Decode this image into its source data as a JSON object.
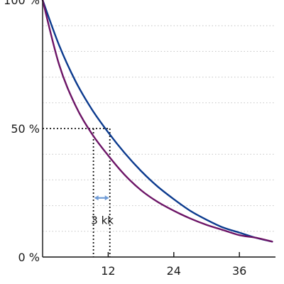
{
  "chart_data": {
    "type": "line",
    "title": "",
    "xlabel": "",
    "ylabel": "",
    "xlim": [
      0,
      42.6
    ],
    "ylim": [
      0,
      100
    ],
    "x_ticks": [
      {
        "value": 12,
        "label": "12"
      },
      {
        "value": 24,
        "label": "24"
      },
      {
        "value": 36,
        "label": "36"
      }
    ],
    "y_ticks": [
      {
        "value": 0,
        "label": "0 %"
      },
      {
        "value": 50,
        "label": "50 %"
      },
      {
        "value": 100,
        "label": "100 %"
      }
    ],
    "y_grid": [
      10,
      20,
      30,
      40,
      60,
      70,
      80,
      90
    ],
    "grid": true,
    "series": [
      {
        "color": "#0b3a8e",
        "x": [
          0,
          3,
          6,
          9,
          12,
          15,
          18,
          21,
          24,
          27,
          30,
          33,
          36,
          39,
          42
        ],
        "y": [
          100,
          82.5,
          68.5,
          57.5,
          48.5,
          40.5,
          33.5,
          27.5,
          22.5,
          18.0,
          14.5,
          11.5,
          9.5,
          7.5,
          6.0
        ]
      },
      {
        "color": "#6c1466",
        "x": [
          0,
          3,
          6,
          9,
          12,
          15,
          18,
          21,
          24,
          27,
          30,
          33,
          36,
          39,
          42
        ],
        "y": [
          100,
          75.0,
          59.0,
          48.0,
          39.5,
          32.0,
          26.0,
          21.5,
          18.0,
          15.0,
          12.5,
          10.5,
          8.5,
          7.5,
          6.0
        ]
      }
    ],
    "reference_lines": {
      "y": 50,
      "x_a": 9.3,
      "x_b": 12.3
    },
    "annotation": {
      "text": "3 kk",
      "y": 23
    }
  }
}
